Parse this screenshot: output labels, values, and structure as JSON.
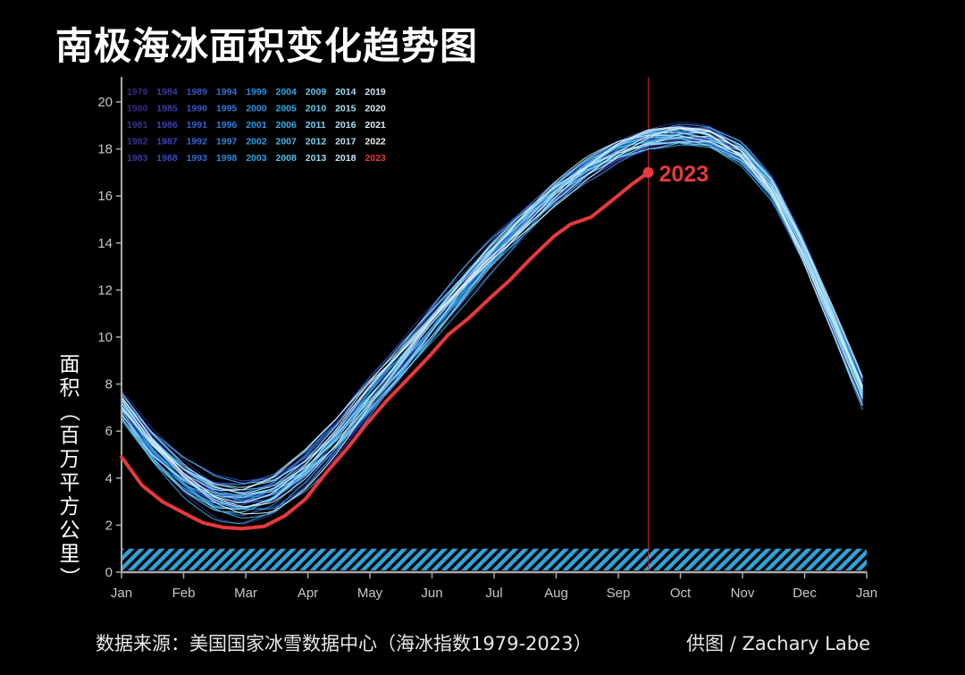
{
  "chart_data": {
    "type": "line",
    "title": "南极海冰面积变化趋势图",
    "ylabel": "面积（百万平方公里）",
    "xlabel": "",
    "ylim": [
      0,
      21
    ],
    "yticks": [
      0,
      2,
      4,
      6,
      8,
      10,
      12,
      14,
      16,
      18,
      20
    ],
    "months": [
      "Jan",
      "Feb",
      "Mar",
      "Apr",
      "May",
      "Jun",
      "Jul",
      "Aug",
      "Sep",
      "Oct",
      "Nov",
      "Dec",
      "Jan"
    ],
    "legend_years": [
      "1979",
      "1980",
      "1981",
      "1982",
      "1983",
      "1984",
      "1985",
      "1986",
      "1987",
      "1988",
      "1989",
      "1990",
      "1991",
      "1992",
      "1993",
      "1994",
      "1995",
      "1996",
      "1997",
      "1998",
      "1999",
      "2000",
      "2001",
      "2002",
      "2003",
      "2004",
      "2005",
      "2006",
      "2007",
      "2008",
      "2009",
      "2010",
      "2011",
      "2012",
      "2013",
      "2014",
      "2015",
      "2016",
      "2017",
      "2018",
      "2019",
      "2020",
      "2021",
      "2022",
      "2023"
    ],
    "climatology": {
      "day_of_year": [
        0,
        15,
        31,
        46,
        59,
        74,
        90,
        105,
        120,
        135,
        151,
        166,
        181,
        196,
        212,
        227,
        243,
        258,
        273,
        288,
        304,
        319,
        334,
        349,
        365
      ],
      "area": [
        7.0,
        5.3,
        4.0,
        3.2,
        3.0,
        3.3,
        4.3,
        5.6,
        7.2,
        8.7,
        10.4,
        12.0,
        13.5,
        14.8,
        16.1,
        17.1,
        17.9,
        18.4,
        18.6,
        18.5,
        17.8,
        16.3,
        13.7,
        10.6,
        7.2
      ]
    },
    "highlight_series": {
      "name": "2023",
      "color": "#e8393c",
      "day_of_year": [
        0,
        10,
        20,
        31,
        40,
        50,
        59,
        70,
        80,
        90,
        100,
        110,
        120,
        130,
        140,
        151,
        160,
        170,
        181,
        190,
        200,
        212,
        220,
        230,
        243,
        250,
        258
      ],
      "area": [
        4.9,
        3.7,
        3.0,
        2.5,
        2.1,
        1.9,
        1.85,
        1.95,
        2.4,
        3.1,
        4.2,
        5.2,
        6.3,
        7.3,
        8.2,
        9.2,
        10.1,
        10.8,
        11.7,
        12.4,
        13.3,
        14.3,
        14.8,
        15.1,
        16.0,
        16.5,
        17.0
      ]
    },
    "highlight_label": "2023",
    "reference_day": 258,
    "xlim_days": [
      0,
      365
    ]
  },
  "source": "数据来源：美国国家冰雪数据中心（海冰指数1979-2023）",
  "credit": "供图 / Zachary Labe"
}
